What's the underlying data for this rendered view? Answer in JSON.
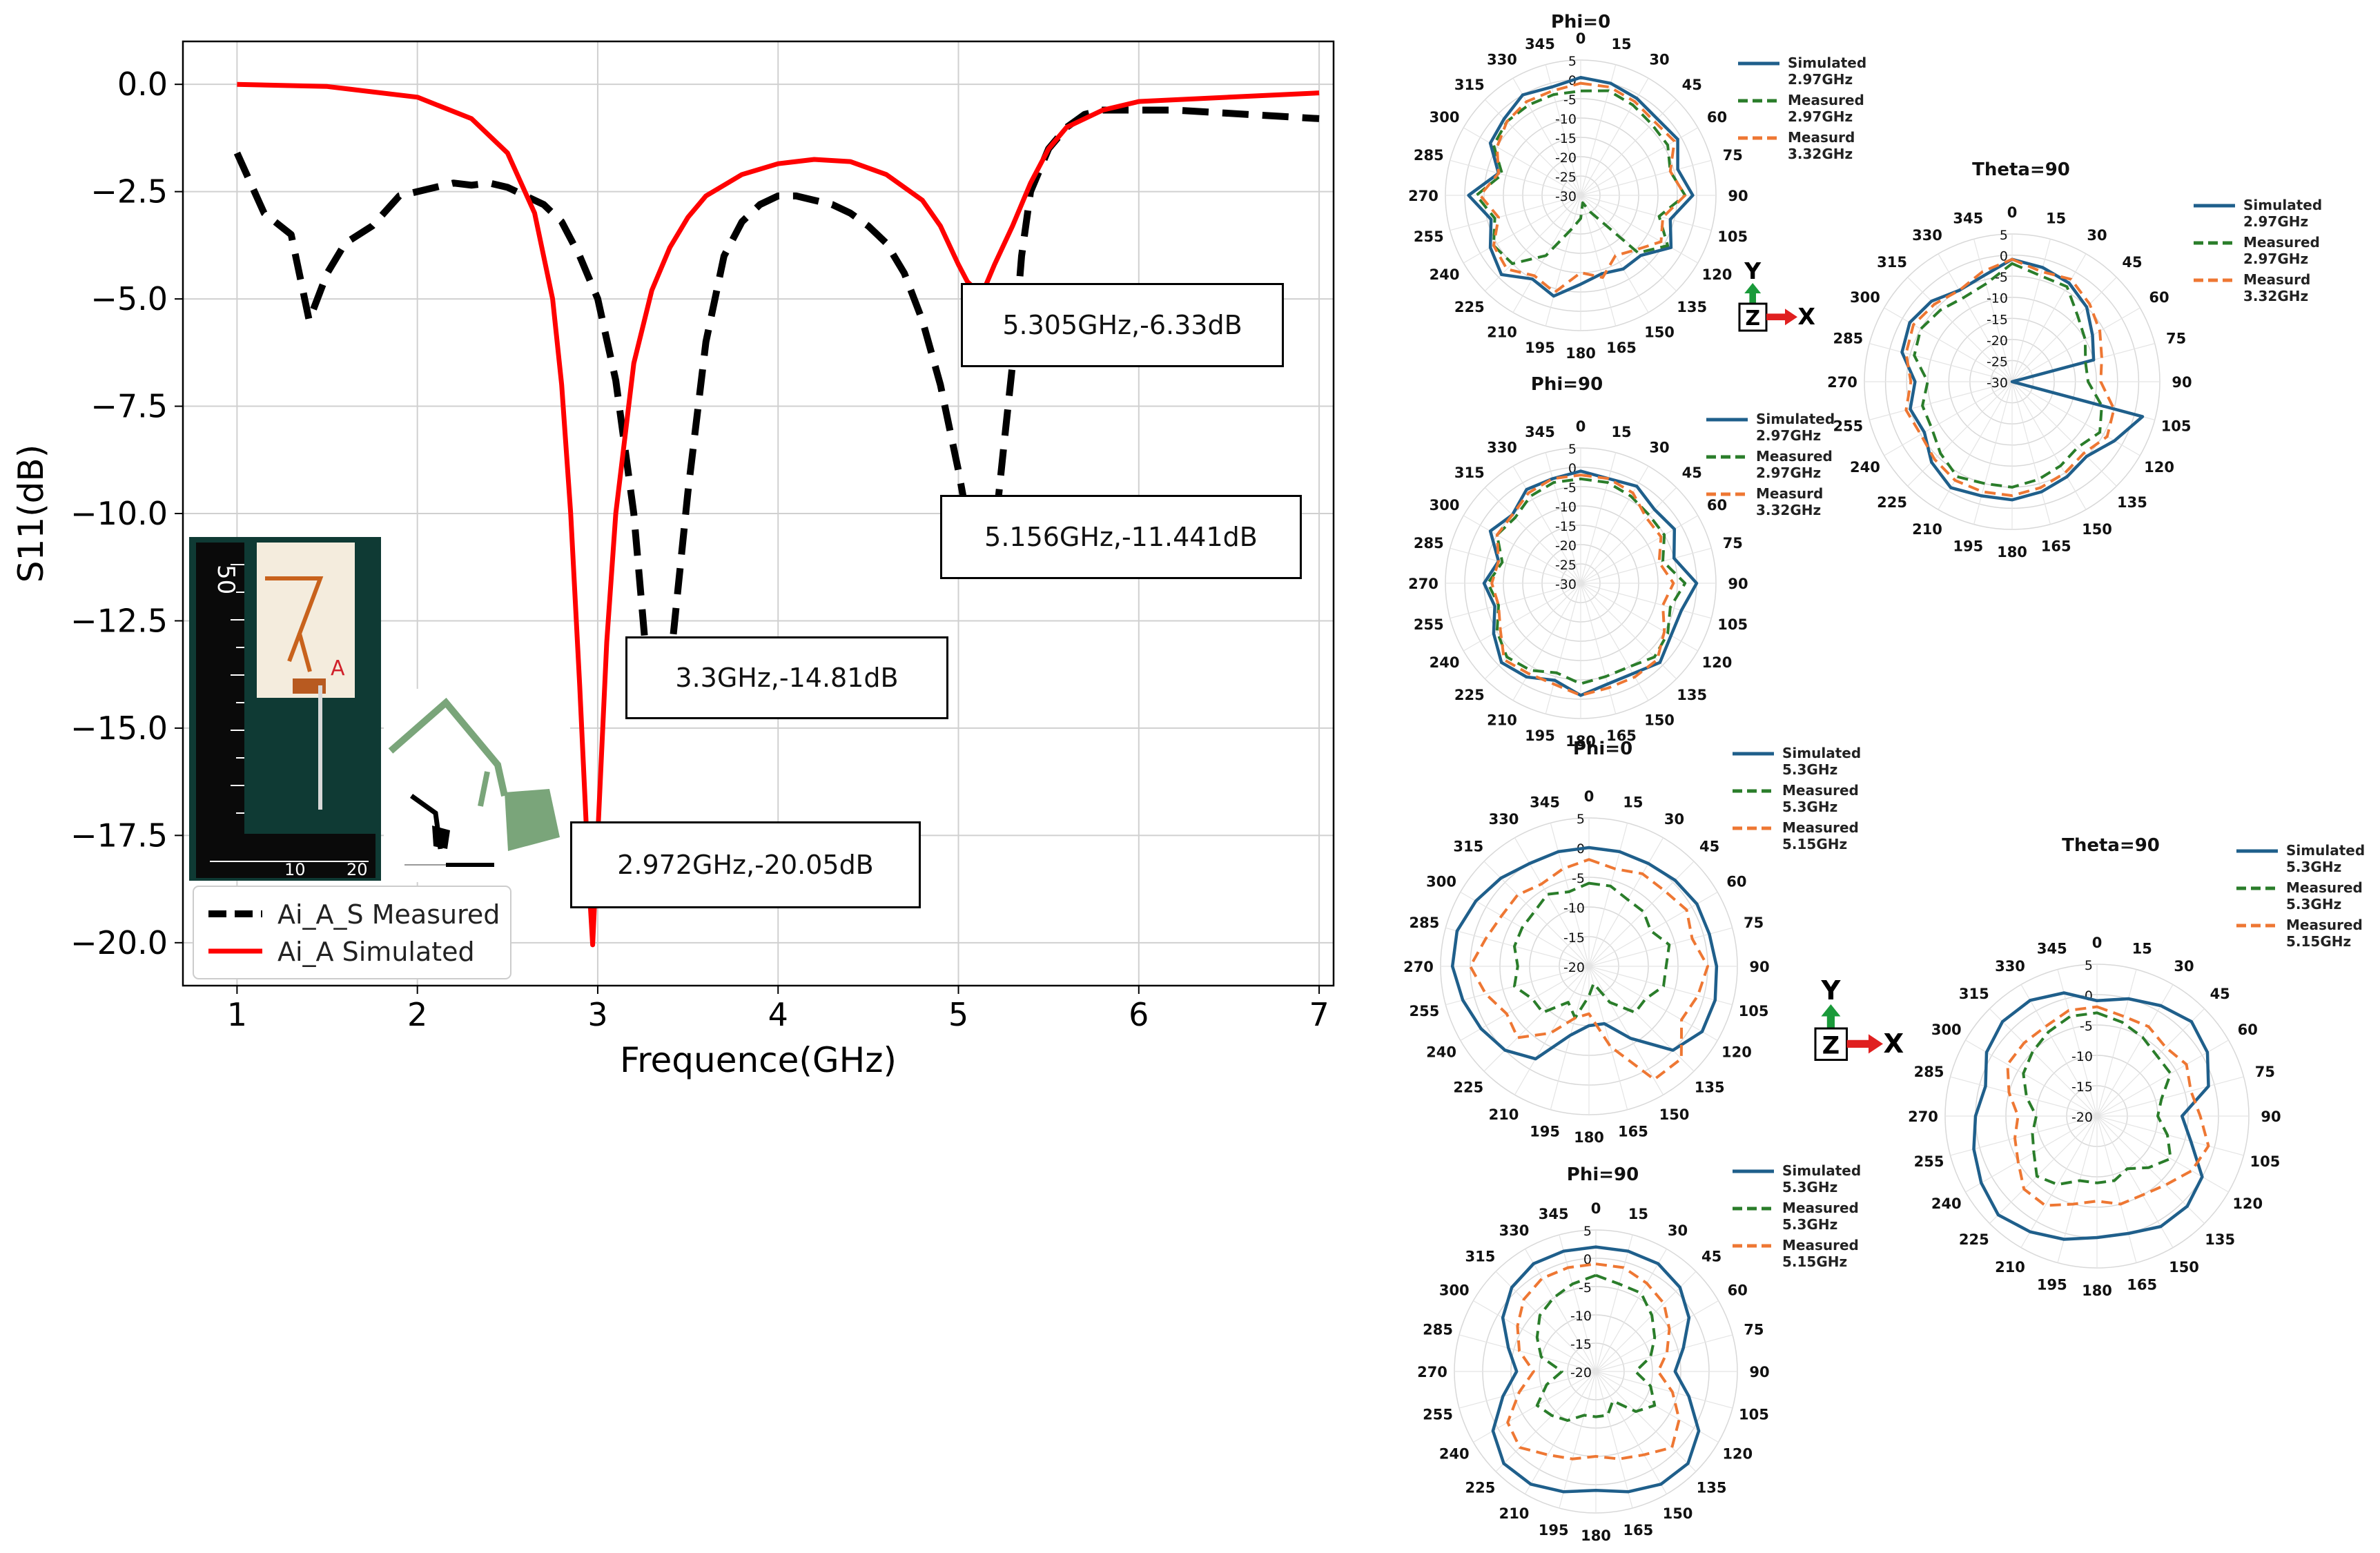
{
  "chart_data": [
    {
      "type": "line",
      "xlabel": "Frequence(GHz)",
      "ylabel": "S11(dB)",
      "xlim": [
        0.7,
        7.08
      ],
      "ylim": [
        -21.0,
        1.0
      ],
      "xticks": [
        1,
        2,
        3,
        4,
        5,
        6,
        7
      ],
      "yticks": [
        0.0,
        -2.5,
        -5.0,
        -7.5,
        -10.0,
        -12.5,
        -15.0,
        -17.5,
        -20.0
      ],
      "ytick_labels": [
        "0.0",
        "−2.5",
        "−5.0",
        "−7.5",
        "−10.0",
        "−12.5",
        "−15.0",
        "−17.5",
        "−20.0"
      ],
      "grid": true,
      "legend_position": "lower-left",
      "series": [
        {
          "name": "Ai_A_S Measured",
          "color": "#000000",
          "style": "dashed",
          "x": [
            1.0,
            1.15,
            1.3,
            1.4,
            1.5,
            1.6,
            1.75,
            1.9,
            2.0,
            2.1,
            2.2,
            2.3,
            2.4,
            2.5,
            2.6,
            2.7,
            2.8,
            2.9,
            3.0,
            3.1,
            3.2,
            3.3,
            3.4,
            3.5,
            3.6,
            3.7,
            3.8,
            3.9,
            4.0,
            4.1,
            4.2,
            4.3,
            4.4,
            4.5,
            4.6,
            4.7,
            4.8,
            4.9,
            5.0,
            5.1,
            5.156,
            5.2,
            5.25,
            5.305,
            5.35,
            5.4,
            5.5,
            5.6,
            5.7,
            5.8,
            6.0,
            6.2,
            6.4,
            6.6,
            6.8,
            7.0
          ],
          "y": [
            -1.6,
            -3.0,
            -3.5,
            -5.5,
            -4.4,
            -3.7,
            -3.3,
            -2.6,
            -2.5,
            -2.4,
            -2.3,
            -2.35,
            -2.3,
            -2.4,
            -2.6,
            -2.8,
            -3.2,
            -4.0,
            -5.0,
            -6.9,
            -10.0,
            -14.81,
            -13.6,
            -9.5,
            -6.0,
            -4.0,
            -3.2,
            -2.8,
            -2.6,
            -2.6,
            -2.7,
            -2.8,
            -3.0,
            -3.3,
            -3.7,
            -4.4,
            -5.5,
            -7.0,
            -9.0,
            -11.3,
            -11.441,
            -10.5,
            -8.5,
            -6.33,
            -4.0,
            -2.5,
            -1.5,
            -1.0,
            -0.7,
            -0.6,
            -0.6,
            -0.6,
            -0.65,
            -0.7,
            -0.75,
            -0.8
          ]
        },
        {
          "name": "Ai_A Simulated",
          "color": "#ff0000",
          "style": "solid",
          "x": [
            1.0,
            1.5,
            2.0,
            2.3,
            2.5,
            2.65,
            2.75,
            2.8,
            2.85,
            2.9,
            2.95,
            2.972,
            3.0,
            3.05,
            3.1,
            3.2,
            3.3,
            3.4,
            3.5,
            3.6,
            3.8,
            4.0,
            4.2,
            4.4,
            4.6,
            4.8,
            4.9,
            5.0,
            5.05,
            5.1,
            5.15,
            5.2,
            5.3,
            5.4,
            5.5,
            5.6,
            5.8,
            6.0,
            6.5,
            7.0
          ],
          "y": [
            0.0,
            -0.05,
            -0.3,
            -0.8,
            -1.6,
            -3.0,
            -5.0,
            -7.0,
            -10.0,
            -14.0,
            -18.5,
            -20.05,
            -17.5,
            -13.0,
            -10.0,
            -6.5,
            -4.8,
            -3.8,
            -3.1,
            -2.6,
            -2.1,
            -1.85,
            -1.75,
            -1.8,
            -2.1,
            -2.7,
            -3.3,
            -4.2,
            -4.6,
            -4.8,
            -4.7,
            -4.2,
            -3.3,
            -2.3,
            -1.5,
            -1.0,
            -0.6,
            -0.4,
            -0.3,
            -0.2
          ]
        }
      ],
      "annotations": [
        {
          "text": "5.305GHz,-6.33dB",
          "underline": "GHz,-"
        },
        {
          "text": "5.156GHz,-11.441dB",
          "underline": "GHz,-"
        },
        {
          "text": "3.3GHz,-14.81dB",
          "underline": "GHz,-"
        },
        {
          "text": "2.972GHz,-20.05dB",
          "underline": "GHz,-"
        }
      ]
    },
    {
      "type": "polar",
      "title": "Phi=0",
      "rlim": [
        -30,
        5
      ],
      "rticks": [
        5,
        0,
        -5,
        -10,
        -15,
        -20,
        -25,
        -30
      ],
      "angles": [
        0,
        15,
        30,
        45,
        60,
        75,
        90,
        105,
        120,
        135,
        150,
        165,
        180,
        195,
        210,
        225,
        240,
        255,
        270,
        285,
        300,
        315,
        330,
        345
      ],
      "series": [
        {
          "name": "Simulated 2.97GHz",
          "color": "#1f5f8b",
          "style": "solid",
          "values": [
            0.5,
            0,
            -1,
            -2,
            -1,
            -4,
            -1,
            -6,
            -3,
            -8,
            -8,
            -9,
            -7,
            -3,
            -5,
            -1,
            -3,
            -6,
            -1,
            -8,
            -3,
            -2,
            0,
            -1
          ]
        },
        {
          "name": "Measured 2.97GHz",
          "color": "#2a7d2a",
          "style": "dashed",
          "values": [
            -3,
            -2,
            -3,
            -4,
            -4,
            -6,
            -3,
            -9,
            -4,
            -9,
            -25,
            -28,
            -24,
            -21,
            -12,
            -5,
            -4,
            -7,
            -3,
            -9,
            -4,
            -3,
            -3,
            -3
          ]
        },
        {
          "name": "Measurd 3.32GHz",
          "color": "#ee7733",
          "style": "dashed",
          "values": [
            -1,
            -1,
            -2,
            -3,
            -2,
            -6,
            -3,
            -8,
            -6,
            -10,
            -12,
            -8,
            -10,
            -4,
            -6,
            -3,
            -4,
            -8,
            -4,
            -8,
            -5,
            -3,
            -2,
            -2
          ]
        }
      ]
    },
    {
      "type": "polar",
      "title": "Phi=90",
      "rlim": [
        -30,
        5
      ],
      "rticks": [
        5,
        0,
        -5,
        -10,
        -15,
        -20,
        -25,
        -30
      ],
      "angles": [
        0,
        15,
        30,
        45,
        60,
        75,
        90,
        105,
        120,
        135,
        150,
        165,
        180,
        195,
        210,
        225,
        240,
        255,
        270,
        285,
        300,
        315,
        330,
        345
      ],
      "series": [
        {
          "name": "Simulated 2.97GHz",
          "color": "#1f5f8b",
          "style": "solid",
          "values": [
            -1,
            -2,
            -1,
            -3,
            -2,
            -5,
            0,
            -3,
            -3,
            -1,
            -3,
            -3,
            -1,
            -4,
            -2,
            -1,
            -4,
            -7,
            -5,
            -8,
            -3,
            -5,
            -2,
            -2
          ]
        },
        {
          "name": "Measured 2.97GHz",
          "color": "#2a7d2a",
          "style": "dashed",
          "values": [
            -3,
            -3,
            -4,
            -5,
            -5,
            -8,
            -3,
            -6,
            -4,
            -3,
            -5,
            -5,
            -4,
            -6,
            -4,
            -3,
            -5,
            -8,
            -6,
            -9,
            -5,
            -6,
            -4,
            -3
          ]
        },
        {
          "name": "Measurd 3.32GHz",
          "color": "#ee7733",
          "style": "dashed",
          "values": [
            -2,
            -2,
            -3,
            -6,
            -6,
            -9,
            -6,
            -8,
            -5,
            -2,
            -2,
            -2,
            -1,
            -3,
            -3,
            -2,
            -6,
            -8,
            -7,
            -8,
            -5,
            -5,
            -3,
            -2
          ]
        }
      ]
    },
    {
      "type": "polar",
      "title": "Theta=90",
      "rlim": [
        -30,
        5
      ],
      "rticks": [
        5,
        0,
        -5,
        -10,
        -15,
        -20,
        -25,
        -30
      ],
      "angles": [
        0,
        15,
        30,
        45,
        60,
        75,
        90,
        105,
        120,
        135,
        150,
        165,
        180,
        195,
        210,
        225,
        240,
        255,
        270,
        285,
        300,
        315,
        330,
        345
      ],
      "series": [
        {
          "name": "Simulated 2.97GHz",
          "color": "#1f5f8b",
          "style": "solid",
          "values": [
            -1,
            -2,
            -3,
            -5,
            -8,
            -10,
            -30,
            2,
            -2,
            -5,
            -4,
            -3,
            -2,
            -2,
            -1,
            -3,
            -6,
            -5,
            -7,
            -3,
            -2,
            -3,
            -5,
            -4
          ]
        },
        {
          "name": "Measured 2.97GHz",
          "color": "#2a7d2a",
          "style": "dashed",
          "values": [
            -2,
            -4,
            -4,
            -8,
            -10,
            -12,
            -12,
            -8,
            -6,
            -8,
            -7,
            -6,
            -5,
            -5,
            -4,
            -6,
            -8,
            -8,
            -10,
            -6,
            -5,
            -6,
            -7,
            -6
          ]
        },
        {
          "name": "Measurd 3.32GHz",
          "color": "#ee7733",
          "style": "dashed",
          "values": [
            -1,
            -3,
            -2,
            -4,
            -6,
            -8,
            -9,
            -5,
            -4,
            -6,
            -5,
            -4,
            -3,
            -3,
            -3,
            -4,
            -5,
            -4,
            -6,
            -4,
            -3,
            -4,
            -5,
            -3
          ]
        }
      ]
    },
    {
      "type": "polar",
      "title": "Phi=0",
      "rlim": [
        -20,
        5
      ],
      "rticks": [
        5,
        0,
        -5,
        -10,
        -15,
        -20
      ],
      "angles": [
        0,
        15,
        30,
        45,
        60,
        75,
        90,
        105,
        120,
        135,
        150,
        165,
        180,
        195,
        210,
        225,
        240,
        255,
        270,
        285,
        300,
        315,
        330,
        345
      ],
      "series": [
        {
          "name": "Simulated 5.3GHz",
          "color": "#1f5f8b",
          "style": "solid",
          "values": [
            0,
            0,
            0,
            0.5,
            1,
            1,
            1.5,
            2,
            2,
            0,
            -6,
            -10,
            -10,
            -8,
            -2,
            0,
            1,
            2,
            3,
            3,
            2,
            1,
            0,
            0
          ]
        },
        {
          "name": "Measured 5.3GHz",
          "color": "#2a7d2a",
          "style": "dashed",
          "values": [
            -6,
            -6,
            -7,
            -7,
            -8,
            -6,
            -7,
            -7,
            -9,
            -9,
            -13,
            -17,
            -15,
            -11,
            -13,
            -9,
            -9,
            -7,
            -8,
            -7,
            -7,
            -7,
            -6,
            -7
          ]
        },
        {
          "name": "Measured 5.15GHz",
          "color": "#ee7733",
          "style": "dashed",
          "values": [
            -2,
            -3,
            -2,
            -2,
            -1,
            -2,
            0,
            -1,
            -2,
            2,
            2,
            -6,
            -12,
            -11,
            -7,
            -3,
            -4,
            -2,
            0,
            -2,
            -3,
            -3,
            -4,
            -3
          ]
        }
      ]
    },
    {
      "type": "polar",
      "title": "Phi=90",
      "rlim": [
        -20,
        5
      ],
      "rticks": [
        5,
        0,
        -5,
        -10,
        -15,
        -20
      ],
      "angles": [
        0,
        15,
        30,
        45,
        60,
        75,
        90,
        105,
        120,
        135,
        150,
        165,
        180,
        195,
        210,
        225,
        240,
        255,
        270,
        285,
        300,
        315,
        330,
        345
      ],
      "series": [
        {
          "name": "Simulated 5.3GHz",
          "color": "#1f5f8b",
          "style": "solid",
          "values": [
            2,
            2,
            2,
            1,
            -1,
            -4,
            -6,
            -3,
            1,
            3,
            3,
            2,
            1,
            2,
            3,
            3,
            1,
            -3,
            -6,
            -4,
            -1,
            1,
            2,
            2
          ]
        },
        {
          "name": "Measured 5.3GHz",
          "color": "#2a7d2a",
          "style": "dashed",
          "values": [
            -3,
            -4,
            -4,
            -6,
            -8,
            -10,
            -13,
            -10,
            -8,
            -10,
            -14,
            -12,
            -12,
            -12,
            -10,
            -9,
            -8,
            -11,
            -14,
            -10,
            -8,
            -6,
            -5,
            -4
          ]
        },
        {
          "name": "Measured 5.15GHz",
          "color": "#ee7733",
          "style": "dashed",
          "values": [
            -1,
            -1,
            -2,
            -3,
            -5,
            -7,
            -9,
            -6,
            -3,
            -1,
            -3,
            -4,
            -5,
            -4,
            -3,
            -1,
            -2,
            -6,
            -9,
            -6,
            -4,
            -2,
            -1,
            -1
          ]
        }
      ]
    },
    {
      "type": "polar",
      "title": "Theta=90",
      "rlim": [
        -20,
        5
      ],
      "rticks": [
        5,
        0,
        -5,
        -10,
        -15,
        -20
      ],
      "angles": [
        0,
        15,
        30,
        45,
        60,
        75,
        90,
        105,
        120,
        135,
        150,
        165,
        180,
        195,
        210,
        225,
        240,
        255,
        270,
        285,
        300,
        315,
        330,
        345
      ],
      "series": [
        {
          "name": "Simulated 5.3GHz",
          "color": "#1f5f8b",
          "style": "solid",
          "values": [
            -1,
            0,
            1,
            2,
            1,
            -1,
            -6,
            -4,
            0,
            1,
            1,
            0,
            0,
            1,
            2,
            3,
            2,
            1,
            0,
            -1,
            1,
            2,
            2,
            1
          ]
        },
        {
          "name": "Measured 5.3GHz",
          "color": "#2a7d2a",
          "style": "dashed",
          "values": [
            -3,
            -4,
            -5,
            -6,
            -6,
            -9,
            -10,
            -8,
            -6,
            -8,
            -10,
            -9,
            -9,
            -9,
            -7,
            -6,
            -8,
            -9,
            -10,
            -8,
            -6,
            -5,
            -4,
            -3
          ]
        },
        {
          "name": "Measured 5.15GHz",
          "color": "#ee7733",
          "style": "dashed",
          "values": [
            -2,
            -3,
            -3,
            -4,
            -3,
            -4,
            -3,
            -1,
            -2,
            -4,
            -5,
            -5,
            -6,
            -5,
            -3,
            -3,
            -5,
            -6,
            -7,
            -5,
            -3,
            -3,
            -3,
            -2
          ]
        }
      ]
    }
  ],
  "axis_glyphs": {
    "y": "Y",
    "z": "Z",
    "x": "X",
    "y_color": "#1a9a3a",
    "x_color": "#e02020"
  },
  "photo": {
    "ruler_text": "50",
    "ruler_ticks": [
      "10",
      "20"
    ],
    "sample_label": "A"
  }
}
